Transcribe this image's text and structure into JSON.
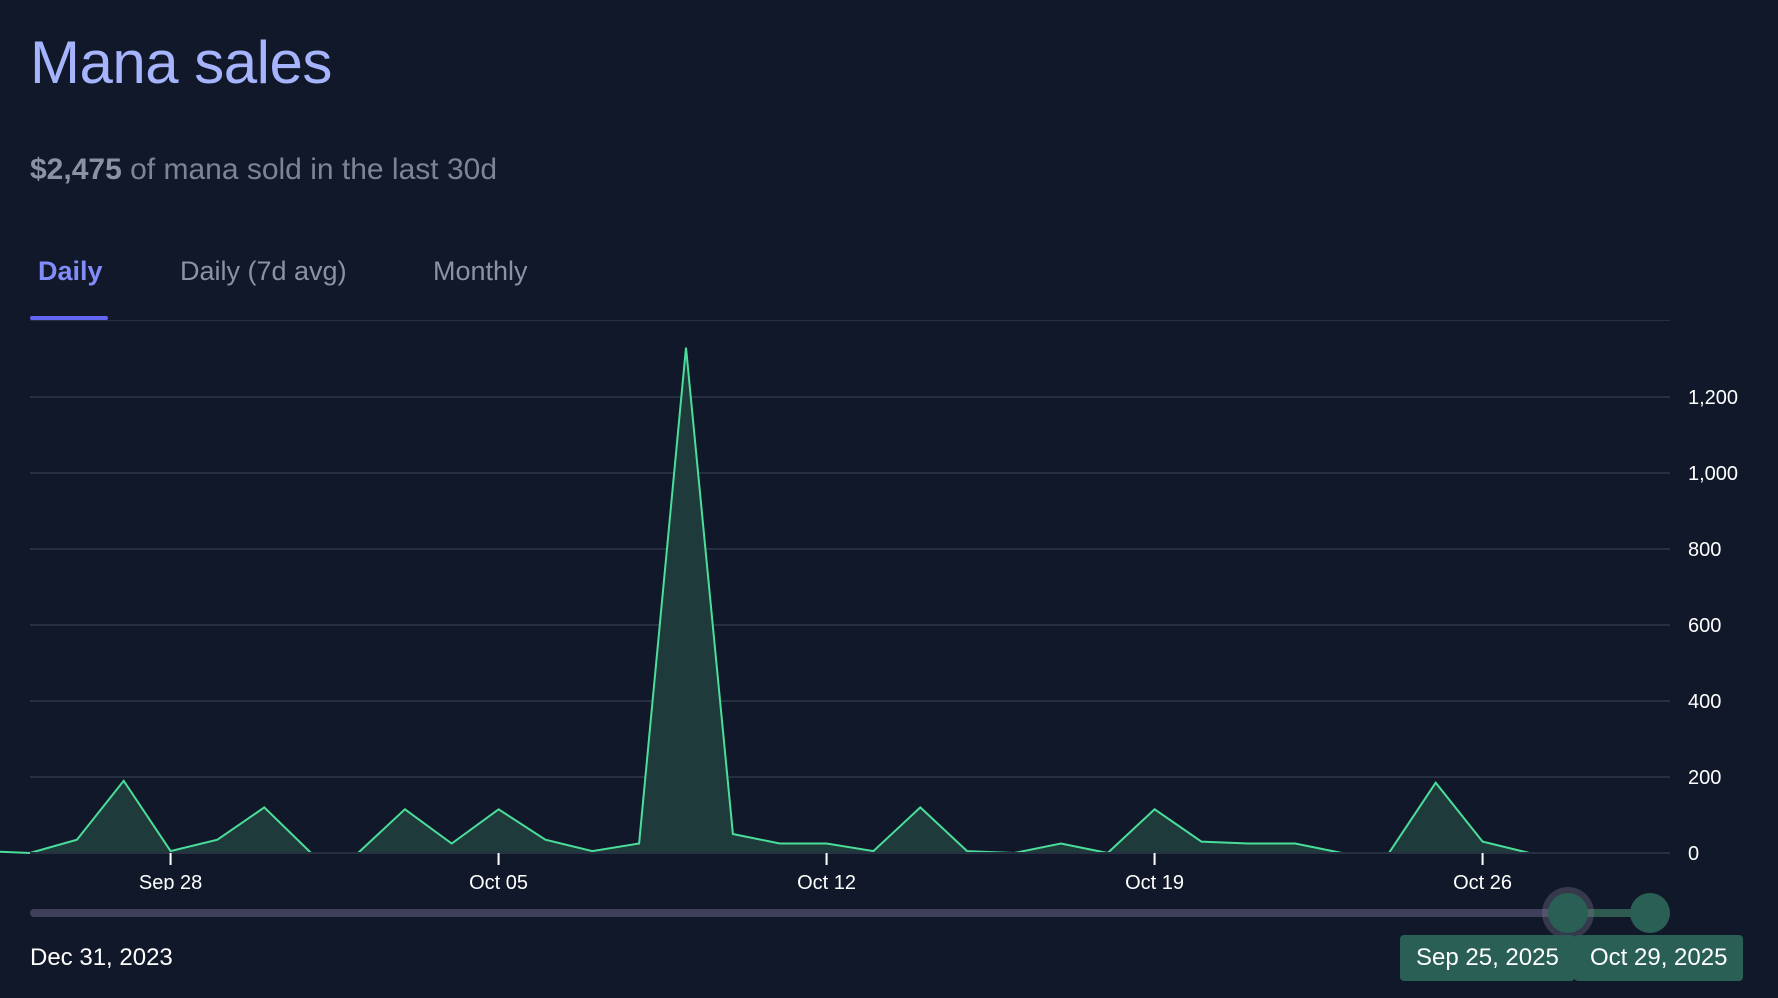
{
  "header": {
    "title": "Mana sales",
    "summary_amount": "$2,475",
    "summary_text": " of mana sold in the last 30d"
  },
  "tabs": [
    {
      "label": "Daily",
      "active": true
    },
    {
      "label": "Daily (7d avg)",
      "active": false
    },
    {
      "label": "Monthly",
      "active": false
    }
  ],
  "range": {
    "min_label": "Dec 31, 2023",
    "start_label": "Sep 25, 2025",
    "end_label": "Oct 29, 2025"
  },
  "colors": {
    "line": "#4ade9a",
    "fill": "#1e3a3a",
    "grid": "#273043",
    "accent": "#818cf8"
  },
  "chart_data": {
    "type": "area",
    "title": "",
    "xlabel": "",
    "ylabel": "",
    "x": [
      "2025-09-24",
      "2025-09-25",
      "2025-09-26",
      "2025-09-27",
      "2025-09-28",
      "2025-09-29",
      "2025-09-30",
      "2025-10-01",
      "2025-10-02",
      "2025-10-03",
      "2025-10-04",
      "2025-10-05",
      "2025-10-06",
      "2025-10-07",
      "2025-10-08",
      "2025-10-09",
      "2025-10-10",
      "2025-10-11",
      "2025-10-12",
      "2025-10-13",
      "2025-10-14",
      "2025-10-15",
      "2025-10-16",
      "2025-10-17",
      "2025-10-18",
      "2025-10-19",
      "2025-10-20",
      "2025-10-21",
      "2025-10-22",
      "2025-10-23",
      "2025-10-24",
      "2025-10-25",
      "2025-10-26",
      "2025-10-27",
      "2025-10-28",
      "2025-10-29",
      "2025-10-30"
    ],
    "series": [
      {
        "values": [
          5,
          0,
          35,
          190,
          5,
          35,
          120,
          0,
          0,
          115,
          25,
          115,
          35,
          5,
          25,
          1330,
          50,
          25,
          25,
          5,
          120,
          5,
          0,
          25,
          0,
          115,
          30,
          25,
          25,
          0,
          0,
          185,
          30,
          0,
          0,
          0,
          0
        ]
      }
    ],
    "x_ticks": [
      "Sep 28",
      "Oct 05",
      "Oct 12",
      "Oct 19",
      "Oct 26"
    ],
    "x_tick_dates": [
      "2025-09-28",
      "2025-10-05",
      "2025-10-12",
      "2025-10-19",
      "2025-10-26"
    ],
    "y_ticks": [
      0,
      200,
      400,
      600,
      800,
      1000,
      1200
    ],
    "y_tick_labels": [
      "0",
      "200",
      "400",
      "600",
      "800",
      "1,000",
      "1,200"
    ],
    "ylim": [
      0,
      1350
    ],
    "grid": true,
    "y_axis_side": "right"
  }
}
